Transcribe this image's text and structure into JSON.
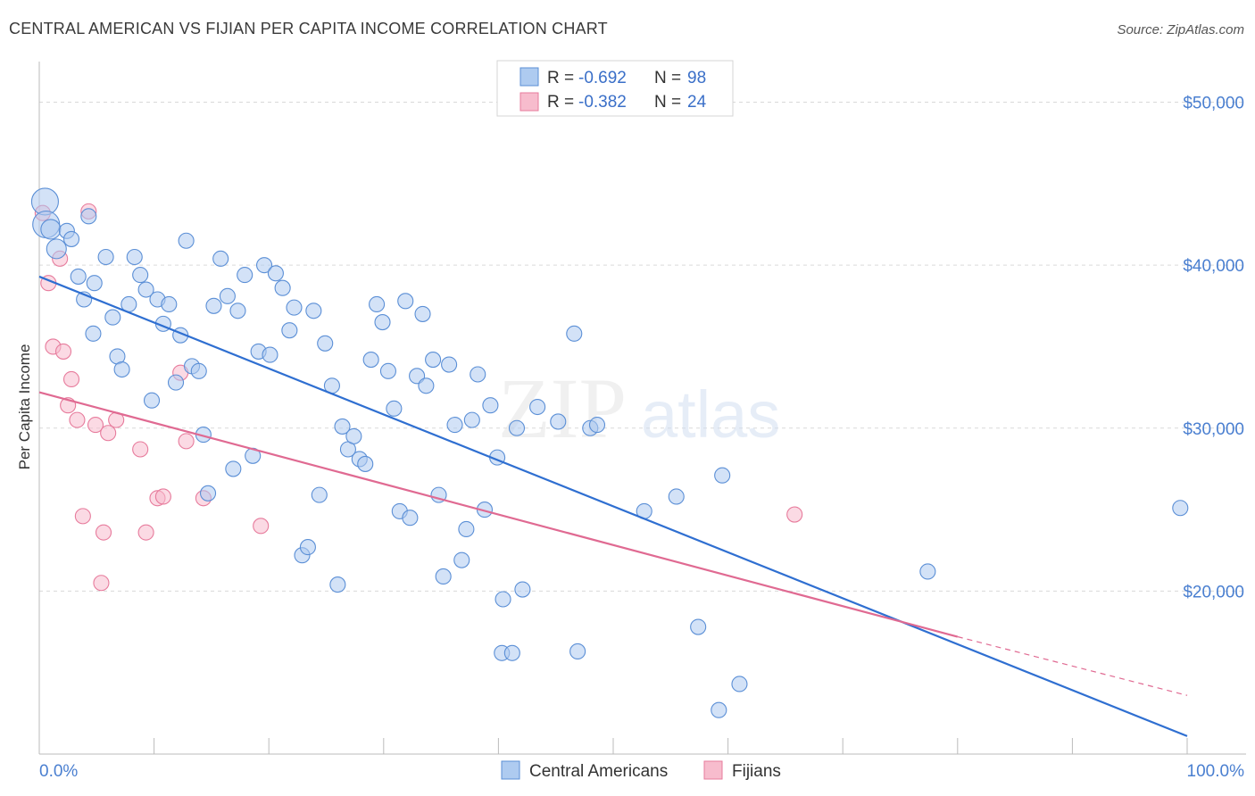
{
  "title": "CENTRAL AMERICAN VS FIJIAN PER CAPITA INCOME CORRELATION CHART",
  "source": "Source: ZipAtlas.com",
  "watermark": {
    "zip": "ZIP",
    "atlas": "atlas"
  },
  "colors": {
    "blue_fill": "#aecbf0",
    "blue_stroke": "#5b8fd6",
    "blue_line": "#2f6fd1",
    "pink_fill": "#f7bccd",
    "pink_stroke": "#e77b9c",
    "pink_line": "#e06a92",
    "tick_text": "#4a7fd0",
    "grid": "#d9d9d9"
  },
  "legend": {
    "rows": [
      {
        "r_label": "R = ",
        "r_value": "-0.692",
        "n_label": "N = ",
        "n_value": "98"
      },
      {
        "r_label": "R = ",
        "r_value": "-0.382",
        "n_label": "N = ",
        "n_value": "24"
      }
    ]
  },
  "chart_data": {
    "type": "scatter",
    "title": "CENTRAL AMERICAN VS FIJIAN PER CAPITA INCOME CORRELATION CHART",
    "xlabel": "",
    "ylabel": "Per Capita Income",
    "xlim": [
      0,
      100
    ],
    "ylim": [
      10000,
      52000
    ],
    "x_tick_labels": [
      "0.0%",
      "100.0%"
    ],
    "y_ticks": [
      20000,
      30000,
      40000,
      50000
    ],
    "y_tick_labels": [
      "$20,000",
      "$30,000",
      "$40,000",
      "$50,000"
    ],
    "grid": true,
    "legend_position": "top-center",
    "series": [
      {
        "name": "Central Americans",
        "color": "#aecbf0",
        "points": [
          [
            0.5,
            43900,
            3
          ],
          [
            0.6,
            42500,
            3
          ],
          [
            1.0,
            42200,
            2
          ],
          [
            1.5,
            41000,
            2
          ],
          [
            2.4,
            42100,
            1
          ],
          [
            2.8,
            41600,
            1
          ],
          [
            4.3,
            43000,
            1
          ],
          [
            3.4,
            39300,
            1
          ],
          [
            3.9,
            37900,
            1
          ],
          [
            4.7,
            35800,
            1
          ],
          [
            5.8,
            40500,
            1
          ],
          [
            4.8,
            38900,
            1
          ],
          [
            6.4,
            36800,
            1
          ],
          [
            6.8,
            34400,
            1
          ],
          [
            7.2,
            33600,
            1
          ],
          [
            7.8,
            37600,
            1
          ],
          [
            8.3,
            40500,
            1
          ],
          [
            8.8,
            39400,
            1
          ],
          [
            9.3,
            38500,
            1
          ],
          [
            9.8,
            31700,
            1
          ],
          [
            10.3,
            37900,
            1
          ],
          [
            10.8,
            36400,
            1
          ],
          [
            11.3,
            37600,
            1
          ],
          [
            11.9,
            32800,
            1
          ],
          [
            12.3,
            35700,
            1
          ],
          [
            12.8,
            41500,
            1
          ],
          [
            13.3,
            33800,
            1
          ],
          [
            13.9,
            33500,
            1
          ],
          [
            14.3,
            29600,
            1
          ],
          [
            14.7,
            26000,
            1
          ],
          [
            15.2,
            37500,
            1
          ],
          [
            15.8,
            40400,
            1
          ],
          [
            16.4,
            38100,
            1
          ],
          [
            16.9,
            27500,
            1
          ],
          [
            17.3,
            37200,
            1
          ],
          [
            17.9,
            39400,
            1
          ],
          [
            18.6,
            28300,
            1
          ],
          [
            19.1,
            34700,
            1
          ],
          [
            19.6,
            40000,
            1
          ],
          [
            20.1,
            34500,
            1
          ],
          [
            20.6,
            39500,
            1
          ],
          [
            21.2,
            38600,
            1
          ],
          [
            21.8,
            36000,
            1
          ],
          [
            22.2,
            37400,
            1
          ],
          [
            22.9,
            22200,
            1
          ],
          [
            23.4,
            22700,
            1
          ],
          [
            23.9,
            37200,
            1
          ],
          [
            24.4,
            25900,
            1
          ],
          [
            24.9,
            35200,
            1
          ],
          [
            25.5,
            32600,
            1
          ],
          [
            26.0,
            20400,
            1
          ],
          [
            26.4,
            30100,
            1
          ],
          [
            26.9,
            28700,
            1
          ],
          [
            27.4,
            29500,
            1
          ],
          [
            27.9,
            28100,
            1
          ],
          [
            28.4,
            27800,
            1
          ],
          [
            28.9,
            34200,
            1
          ],
          [
            29.4,
            37600,
            1
          ],
          [
            29.9,
            36500,
            1
          ],
          [
            30.4,
            33500,
            1
          ],
          [
            30.9,
            31200,
            1
          ],
          [
            31.4,
            24900,
            1
          ],
          [
            31.9,
            37800,
            1
          ],
          [
            32.3,
            24500,
            1
          ],
          [
            32.9,
            33200,
            1
          ],
          [
            33.4,
            37000,
            1
          ],
          [
            33.7,
            32600,
            1
          ],
          [
            34.3,
            34200,
            1
          ],
          [
            34.8,
            25900,
            1
          ],
          [
            35.2,
            20900,
            1
          ],
          [
            35.7,
            33900,
            1
          ],
          [
            36.2,
            30200,
            1
          ],
          [
            36.8,
            21900,
            1
          ],
          [
            37.2,
            23800,
            1
          ],
          [
            37.7,
            30500,
            1
          ],
          [
            38.2,
            33300,
            1
          ],
          [
            38.8,
            25000,
            1
          ],
          [
            39.3,
            31400,
            1
          ],
          [
            39.9,
            28200,
            1
          ],
          [
            40.3,
            16200,
            1
          ],
          [
            40.4,
            19500,
            1
          ],
          [
            41.2,
            16200,
            1
          ],
          [
            41.6,
            30000,
            1
          ],
          [
            42.1,
            20100,
            1
          ],
          [
            43.4,
            31300,
            1
          ],
          [
            45.2,
            30400,
            1
          ],
          [
            46.6,
            35800,
            1
          ],
          [
            46.9,
            16300,
            1
          ],
          [
            48.0,
            30000,
            1
          ],
          [
            48.6,
            30200,
            1
          ],
          [
            52.7,
            24900,
            1
          ],
          [
            55.5,
            25800,
            1
          ],
          [
            57.4,
            17800,
            1
          ],
          [
            59.5,
            27100,
            1
          ],
          [
            61.0,
            14300,
            1
          ],
          [
            59.2,
            12700,
            1
          ],
          [
            77.4,
            21200,
            1
          ],
          [
            99.4,
            25100,
            1
          ]
        ],
        "trend": {
          "x": [
            0,
            100
          ],
          "y": [
            39300,
            11100
          ]
        }
      },
      {
        "name": "Fijians",
        "color": "#f7bccd",
        "points": [
          [
            0.3,
            43200
          ],
          [
            0.8,
            38900
          ],
          [
            1.2,
            35000
          ],
          [
            1.8,
            40400
          ],
          [
            2.1,
            34700
          ],
          [
            2.8,
            33000
          ],
          [
            2.5,
            31400
          ],
          [
            3.3,
            30500
          ],
          [
            3.8,
            24600
          ],
          [
            4.3,
            43300
          ],
          [
            4.9,
            30200
          ],
          [
            5.4,
            20500
          ],
          [
            5.6,
            23600
          ],
          [
            6.0,
            29700
          ],
          [
            6.7,
            30500
          ],
          [
            8.8,
            28700
          ],
          [
            9.3,
            23600
          ],
          [
            10.3,
            25700
          ],
          [
            10.8,
            25800
          ],
          [
            12.3,
            33400
          ],
          [
            12.8,
            29200
          ],
          [
            14.3,
            25700
          ],
          [
            19.3,
            24000
          ],
          [
            65.8,
            24700
          ]
        ],
        "trend": {
          "x": [
            0,
            80
          ],
          "y": [
            32200,
            17200
          ]
        },
        "trend_dashed": {
          "x": [
            80,
            100
          ],
          "y": [
            17200,
            13600
          ]
        }
      }
    ]
  }
}
